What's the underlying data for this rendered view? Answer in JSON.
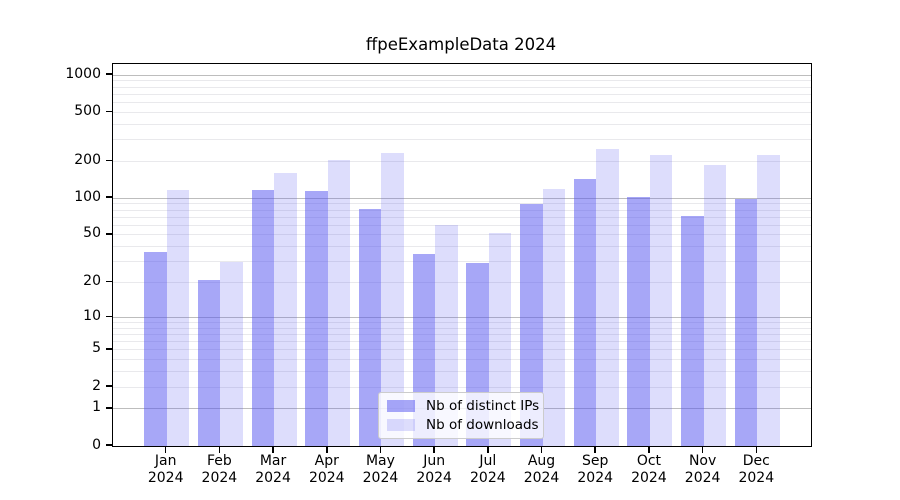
{
  "chart_data": {
    "type": "bar",
    "title": "ffpeExampleData 2024",
    "categories": [
      "Jan",
      "Feb",
      "Mar",
      "Apr",
      "May",
      "Jun",
      "Jul",
      "Aug",
      "Sep",
      "Oct",
      "Nov",
      "Dec"
    ],
    "x_year": "2024",
    "series": [
      {
        "name": "Nb of distinct IPs",
        "color": "#5757f0",
        "alpha": 0.52,
        "values": [
          36,
          21,
          116,
          115,
          81,
          35,
          29,
          90,
          143,
          102,
          71,
          99
        ]
      },
      {
        "name": "Nb of downloads",
        "color": "#5757f0",
        "alpha": 0.2,
        "values": [
          117,
          30,
          162,
          204,
          235,
          60,
          52,
          118,
          250,
          224,
          186,
          226
        ]
      }
    ],
    "y_ticks": [
      0,
      1,
      2,
      5,
      10,
      20,
      50,
      100,
      200,
      500,
      1000
    ],
    "y_scale": "log1p",
    "ylim": [
      0,
      1230
    ],
    "xlabel": "",
    "ylabel": "",
    "grid": "both",
    "grid_major_color": "#bdbdbd",
    "grid_minor_color": "#e9e9ec",
    "legend_position": "lower center",
    "background": "#ffffff"
  }
}
